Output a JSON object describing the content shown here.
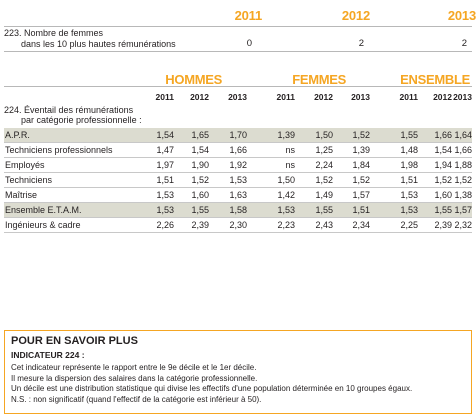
{
  "section223": {
    "years": [
      "2011",
      "2012",
      "2013"
    ],
    "indicator_line1": "223.  Nombre de femmes",
    "indicator_line2": "dans les 10 plus hautes rémunérations",
    "values": [
      "0",
      "2",
      "2"
    ]
  },
  "section224": {
    "groups": [
      "HOMMES",
      "FEMMES",
      "ENSEMBLE"
    ],
    "years": [
      "2011",
      "2012",
      "2013"
    ],
    "indicator_line1": "224.  Éventail des rémunérations",
    "indicator_line2": "par catégorie professionnelle :",
    "rows": [
      {
        "label": "A.P.R.",
        "shaded": true,
        "values": [
          "1,54",
          "1,65",
          "1,70",
          "1,39",
          "1,50",
          "1,52",
          "1,55",
          "1,66",
          "1,64"
        ]
      },
      {
        "label": "Techniciens professionnels",
        "shaded": false,
        "values": [
          "1,47",
          "1,54",
          "1,66",
          "ns",
          "1,25",
          "1,39",
          "1,48",
          "1,54",
          "1,66"
        ]
      },
      {
        "label": "Employés",
        "shaded": false,
        "values": [
          "1,97",
          "1,90",
          "1,92",
          "ns",
          "2,24",
          "1,84",
          "1,98",
          "1,94",
          "1,88"
        ]
      },
      {
        "label": "Techniciens",
        "shaded": false,
        "values": [
          "1,51",
          "1,52",
          "1,53",
          "1,50",
          "1,52",
          "1,52",
          "1,51",
          "1,52",
          "1,52"
        ]
      },
      {
        "label": "Maîtrise",
        "shaded": false,
        "values": [
          "1,53",
          "1,60",
          "1,63",
          "1,42",
          "1,49",
          "1,57",
          "1,53",
          "1,60",
          "1,38"
        ]
      },
      {
        "label": "Ensemble E.T.A.M.",
        "shaded": true,
        "values": [
          "1,53",
          "1,55",
          "1,58",
          "1,53",
          "1,55",
          "1,51",
          "1,53",
          "1,55",
          "1,57"
        ]
      },
      {
        "label": "Ingénieurs & cadre",
        "shaded": false,
        "values": [
          "2,26",
          "2,39",
          "2,30",
          "2,23",
          "2,43",
          "2,34",
          "2,25",
          "2,39",
          "2,32"
        ]
      }
    ]
  },
  "info_box": {
    "title": "POUR EN SAVOIR PLUS",
    "subtitle": "INDICATEUR 224 :",
    "lines": [
      "Cet indicateur représente le rapport entre le 9e décile et le 1er décile.",
      "Il mesure la dispersion des salaires dans la catégorie professionnelle.",
      "Un décile est une distribution statistique qui divise les effectifs d'une population déterminée en 10 groupes égaux.",
      "N.S. : non significatif (quand l'effectif de la catégorie est inférieur à 50)."
    ]
  },
  "colors": {
    "accent": "#f5a623",
    "shaded_row": "#dcdcd0"
  }
}
